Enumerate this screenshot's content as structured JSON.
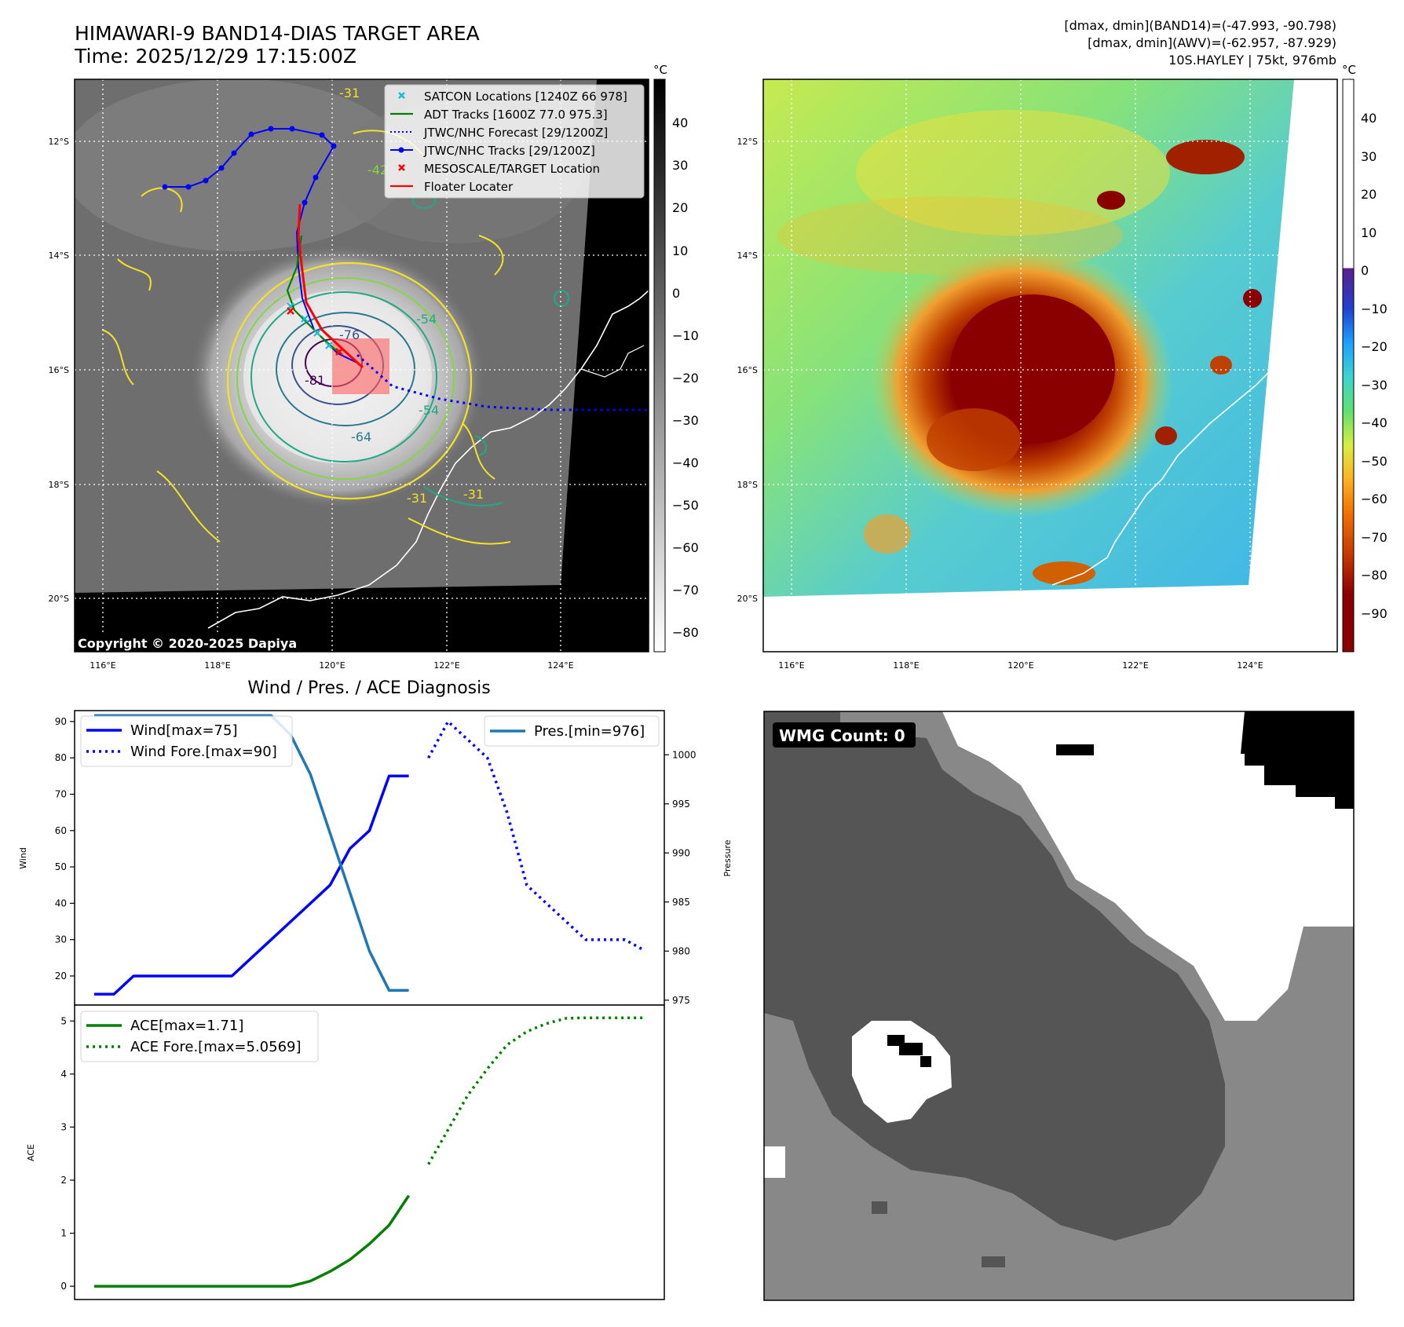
{
  "header": {
    "title": "HIMAWARI-9 BAND14-DIAS TARGET AREA",
    "time": "Time: 2025/12/29 17:15:00Z",
    "info_1": "[dmax, dmin](BAND14)=(-47.993, -90.798)",
    "info_2": "[dmax, dmin](AWV)=(-62.957, -87.929)",
    "info_3": "10S.HAYLEY | 75kt, 976mb"
  },
  "map_panels": {
    "lat_labels": [
      "12°S",
      "14°S",
      "16°S",
      "18°S",
      "20°S"
    ],
    "lon_labels": [
      "116°E",
      "118°E",
      "120°E",
      "122°E",
      "124°E"
    ],
    "colorbar_unit": "°C",
    "ir_colorbar_ticks": [
      "40",
      "30",
      "20",
      "10",
      "0",
      "−10",
      "−20",
      "−30",
      "−40",
      "−50",
      "−60",
      "−70",
      "−80"
    ],
    "awv_colorbar_ticks": [
      "40",
      "30",
      "20",
      "10",
      "0",
      "−10",
      "−20",
      "−30",
      "−40",
      "−50",
      "−60",
      "−70",
      "−80",
      "−90"
    ],
    "copyright": "Copyright © 2020-2025 Dapiya",
    "contour_labels": [
      "-31",
      "-31",
      "-31",
      "-42",
      "-54",
      "-54",
      "-64",
      "-76",
      "-81"
    ],
    "legend": [
      {
        "label": "SATCON Locations [1240Z 66 978]",
        "color": "#17becf",
        "marker": "x"
      },
      {
        "label": "ADT Tracks [1600Z 77.0 975.3]",
        "color": "#008000",
        "marker": "line"
      },
      {
        "label": "JTWC/NHC Forecast [29/1200Z]",
        "color": "#0000ff",
        "marker": "dotted"
      },
      {
        "label": "JTWC/NHC Tracks [29/1200Z]",
        "color": "#0000ff",
        "marker": "line-dot"
      },
      {
        "label": "MESOSCALE/TARGET Location",
        "color": "#ff0000",
        "marker": "x"
      },
      {
        "label": "Floater Locater",
        "color": "#ff0000",
        "marker": "line"
      }
    ]
  },
  "diagnosis": {
    "title": "Wind / Pres. / ACE Diagnosis",
    "wind_ylabel": "Wind",
    "pres_ylabel": "Pressure",
    "ace_ylabel": "ACE",
    "wind_legend": [
      "Wind[max=75]",
      "Wind Fore.[max=90]"
    ],
    "pres_legend": [
      "Pres.[min=976]"
    ],
    "ace_legend": [
      "ACE[max=1.71]",
      "ACE Fore.[max=5.0569]"
    ]
  },
  "wmg": {
    "label": "WMG Count: 0"
  },
  "colors": {
    "wind": "#0000ff",
    "pressure": "#1f77b4",
    "ace": "#008000",
    "frame": "#000000"
  },
  "chart_data": [
    {
      "type": "line",
      "title": "Wind / Pres. / ACE Diagnosis",
      "ylabel": "Wind",
      "ylim": [
        12,
        93
      ],
      "xlim": [
        -1,
        29
      ],
      "yticks": [
        20,
        30,
        40,
        50,
        60,
        70,
        80,
        90
      ],
      "series": [
        {
          "name": "Wind[max=75]",
          "style": "solid",
          "x": [
            0,
            1,
            2,
            3,
            4,
            5,
            6,
            7,
            8,
            9,
            10,
            11,
            12,
            13,
            14,
            15,
            16
          ],
          "values": [
            15,
            15,
            20,
            20,
            20,
            20,
            20,
            20,
            25,
            30,
            35,
            40,
            45,
            55,
            60,
            75,
            75
          ]
        },
        {
          "name": "Wind Fore.[max=90]",
          "style": "dotted",
          "x": [
            17,
            18,
            19,
            20,
            21,
            22,
            23,
            24,
            25,
            26,
            27,
            28
          ],
          "values": [
            80,
            90,
            85,
            80,
            65,
            45,
            40,
            35,
            30,
            30,
            30,
            27
          ]
        }
      ]
    },
    {
      "type": "line",
      "ylabel": "Pressure",
      "ylim": [
        974.5,
        1004.5
      ],
      "yticks": [
        975,
        980,
        985,
        990,
        995,
        1000
      ],
      "series": [
        {
          "name": "Pres.[min=976]",
          "x": [
            0,
            1,
            2,
            3,
            4,
            5,
            6,
            7,
            8,
            9,
            10,
            11,
            12,
            13,
            14,
            15,
            16
          ],
          "values": [
            1004,
            1004,
            1004,
            1004,
            1004,
            1004,
            1004,
            1004,
            1004,
            1004,
            1002,
            998,
            992,
            986,
            980,
            976,
            976
          ]
        }
      ]
    },
    {
      "type": "line",
      "ylabel": "ACE",
      "ylim": [
        -0.25,
        5.3
      ],
      "yticks": [
        0,
        1,
        2,
        3,
        4,
        5
      ],
      "series": [
        {
          "name": "ACE[max=1.71]",
          "style": "solid",
          "x": [
            0,
            1,
            2,
            3,
            4,
            5,
            6,
            7,
            8,
            9,
            10,
            11,
            12,
            13,
            14,
            15,
            16
          ],
          "values": [
            0,
            0,
            0,
            0,
            0,
            0,
            0,
            0,
            0,
            0,
            0,
            0.1,
            0.28,
            0.5,
            0.8,
            1.15,
            1.71
          ]
        },
        {
          "name": "ACE Fore.[max=5.0569]",
          "style": "dotted",
          "x": [
            17,
            18,
            19,
            20,
            21,
            22,
            23,
            24,
            25,
            26,
            27,
            28
          ],
          "values": [
            2.3,
            2.95,
            3.6,
            4.1,
            4.55,
            4.8,
            4.95,
            5.05,
            5.06,
            5.06,
            5.06,
            5.06
          ]
        }
      ]
    }
  ]
}
